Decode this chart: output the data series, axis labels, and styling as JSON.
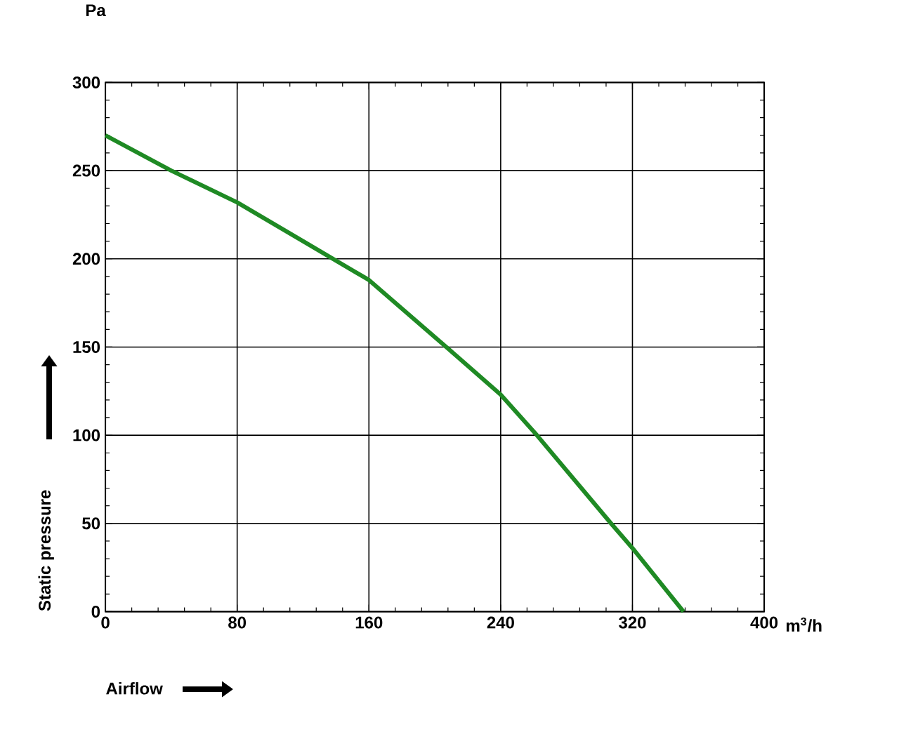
{
  "chart_data": {
    "type": "line",
    "xlabel": "Airflow",
    "ylabel": "Static pressure",
    "annotations": [
      "Pa",
      "m$^{3}$/h"
    ],
    "x": [
      0,
      40,
      80,
      120,
      160,
      207,
      240,
      262,
      307,
      320,
      351
    ],
    "series": [
      {
        "color": "#1f8a24",
        "values": [
          270,
          250,
          232,
          210,
          188,
          150,
          123,
          100,
          50,
          36,
          0
        ]
      }
    ],
    "xlim": [
      0,
      400
    ],
    "ylim": [
      0,
      300
    ],
    "xticks": [
      0,
      80,
      160,
      240,
      320,
      400
    ],
    "yticks": [
      0,
      50,
      100,
      150,
      200,
      250,
      300
    ],
    "grid": true,
    "marker": "none",
    "line_style": "solid"
  }
}
